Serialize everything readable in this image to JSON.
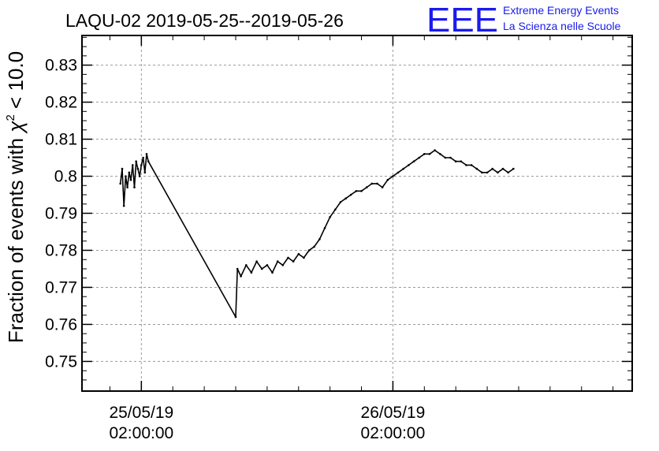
{
  "chart_data": {
    "type": "line",
    "title": "LAQU-02 2019-05-25--2019-05-26",
    "ylabel_prefix": "Fraction of events with ",
    "ylabel_symbol": "χ",
    "ylabel_sup": "2",
    "ylabel_suffix": " < 10.0",
    "xlabel": "",
    "x_axis": {
      "start": "2019-05-24T20:20:00",
      "end": "2019-05-27T00:50:00",
      "major_ticks": [
        {
          "date": "25/05/19",
          "time": "02:00:00",
          "at": "2019-05-25T02:00:00"
        },
        {
          "date": "26/05/19",
          "time": "02:00:00",
          "at": "2019-05-26T02:00:00"
        }
      ],
      "minor_tick_hours": 3
    },
    "ylim": [
      0.742,
      0.838
    ],
    "yticks": [
      "0.75",
      "0.76",
      "0.77",
      "0.78",
      "0.79",
      "0.8",
      "0.81",
      "0.82",
      "0.83"
    ],
    "grid": true,
    "series": [
      {
        "points": [
          [
            "2019-05-25T00:00",
            0.798
          ],
          [
            "2019-05-25T00:10",
            0.802
          ],
          [
            "2019-05-25T00:20",
            0.792
          ],
          [
            "2019-05-25T00:30",
            0.8
          ],
          [
            "2019-05-25T00:40",
            0.797
          ],
          [
            "2019-05-25T00:50",
            0.801
          ],
          [
            "2019-05-25T01:00",
            0.799
          ],
          [
            "2019-05-25T01:10",
            0.803
          ],
          [
            "2019-05-25T01:20",
            0.797
          ],
          [
            "2019-05-25T01:30",
            0.804
          ],
          [
            "2019-05-25T01:40",
            0.802
          ],
          [
            "2019-05-25T01:50",
            0.8
          ],
          [
            "2019-05-25T02:00",
            0.803
          ],
          [
            "2019-05-25T02:10",
            0.805
          ],
          [
            "2019-05-25T02:20",
            0.801
          ],
          [
            "2019-05-25T02:30",
            0.806
          ],
          [
            "2019-05-25T02:40",
            0.804
          ],
          [
            "2019-05-25T11:00",
            0.762
          ],
          [
            "2019-05-25T11:10",
            0.775
          ],
          [
            "2019-05-25T11:30",
            0.773
          ],
          [
            "2019-05-25T12:00",
            0.776
          ],
          [
            "2019-05-25T12:30",
            0.774
          ],
          [
            "2019-05-25T13:00",
            0.777
          ],
          [
            "2019-05-25T13:30",
            0.775
          ],
          [
            "2019-05-25T14:00",
            0.776
          ],
          [
            "2019-05-25T14:30",
            0.774
          ],
          [
            "2019-05-25T15:00",
            0.777
          ],
          [
            "2019-05-25T15:30",
            0.776
          ],
          [
            "2019-05-25T16:00",
            0.778
          ],
          [
            "2019-05-25T16:30",
            0.777
          ],
          [
            "2019-05-25T17:00",
            0.779
          ],
          [
            "2019-05-25T17:30",
            0.778
          ],
          [
            "2019-05-25T18:00",
            0.78
          ],
          [
            "2019-05-25T18:30",
            0.781
          ],
          [
            "2019-05-25T19:00",
            0.783
          ],
          [
            "2019-05-25T19:30",
            0.786
          ],
          [
            "2019-05-25T20:00",
            0.789
          ],
          [
            "2019-05-25T20:30",
            0.791
          ],
          [
            "2019-05-25T21:00",
            0.793
          ],
          [
            "2019-05-25T21:30",
            0.794
          ],
          [
            "2019-05-25T22:00",
            0.795
          ],
          [
            "2019-05-25T22:30",
            0.796
          ],
          [
            "2019-05-25T23:00",
            0.796
          ],
          [
            "2019-05-25T23:30",
            0.797
          ],
          [
            "2019-05-26T00:00",
            0.798
          ],
          [
            "2019-05-26T00:30",
            0.798
          ],
          [
            "2019-05-26T01:00",
            0.797
          ],
          [
            "2019-05-26T01:30",
            0.799
          ],
          [
            "2019-05-26T02:00",
            0.8
          ],
          [
            "2019-05-26T02:30",
            0.801
          ],
          [
            "2019-05-26T03:00",
            0.802
          ],
          [
            "2019-05-26T03:30",
            0.803
          ],
          [
            "2019-05-26T04:00",
            0.804
          ],
          [
            "2019-05-26T04:30",
            0.805
          ],
          [
            "2019-05-26T05:00",
            0.806
          ],
          [
            "2019-05-26T05:30",
            0.806
          ],
          [
            "2019-05-26T06:00",
            0.807
          ],
          [
            "2019-05-26T06:30",
            0.806
          ],
          [
            "2019-05-26T07:00",
            0.805
          ],
          [
            "2019-05-26T07:30",
            0.805
          ],
          [
            "2019-05-26T08:00",
            0.804
          ],
          [
            "2019-05-26T08:30",
            0.804
          ],
          [
            "2019-05-26T09:00",
            0.803
          ],
          [
            "2019-05-26T09:30",
            0.803
          ],
          [
            "2019-05-26T10:00",
            0.802
          ],
          [
            "2019-05-26T10:30",
            0.801
          ],
          [
            "2019-05-26T11:00",
            0.801
          ],
          [
            "2019-05-26T11:30",
            0.802
          ],
          [
            "2019-05-26T12:00",
            0.801
          ],
          [
            "2019-05-26T12:30",
            0.802
          ],
          [
            "2019-05-26T13:00",
            0.801
          ],
          [
            "2019-05-26T13:30",
            0.802
          ]
        ]
      }
    ]
  },
  "logo": {
    "mark": "EEE",
    "line1": "Extreme Energy Events",
    "line2": "La Scienza nelle Scuole",
    "color": "#1a1aee"
  }
}
